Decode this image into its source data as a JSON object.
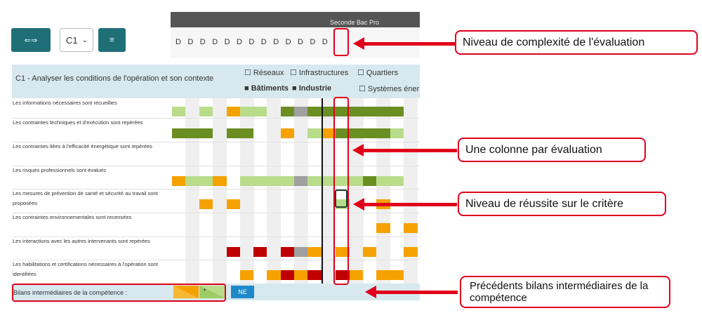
{
  "toolbar": {
    "toggle_button_label": "⇐⇒",
    "competence_select_value": "C1",
    "menu_button_label": "≡"
  },
  "header": {
    "title": "Seconde Bac Pro"
  },
  "evaluation_levels": [
    "D",
    "D",
    "D",
    "D",
    "D",
    "D",
    "D",
    "D",
    "D",
    "D",
    "D",
    "D",
    "D"
  ],
  "competence": {
    "title": "C1 - Analyser les conditions de l'opération et son contexte",
    "legend": [
      {
        "label": "☐ Réseaux",
        "style": "normal"
      },
      {
        "label": "☐ Infrastructures",
        "style": "normal"
      },
      {
        "label": "☐ Quartiers",
        "style": "normal"
      },
      {
        "label": "■ Bâtiments",
        "style": "bold"
      },
      {
        "label": "■ Industrie",
        "style": "bold"
      },
      {
        "label": "☐ Systèmes éner",
        "style": "normal"
      }
    ]
  },
  "criteria": [
    "Les informations nécessaires sont recueillies",
    "Les contraintes techniques et d'exécution sont repérées",
    "Les contraintes liées à l'efficacité énergétique sont repérées",
    "Les risques professionnels sont évalués",
    "Les mesures de prévention de santé et sécurité au travail sont proposées",
    "Les contraintes environnementales sont recensées",
    "Les interactions avec les autres intervenants sont repérées",
    "Les habilitations et certifications nécessaires à l'opération sont identifiées"
  ],
  "colors": {
    "light_green": "#b9dc8a",
    "dark_green": "#6b8e23",
    "orange": "#f5a200",
    "gray": "#a0a0a0",
    "dark_red": "#c00000",
    "accent_teal": "#1f6f78",
    "annotation_red": "#e0001b"
  },
  "footer": {
    "label": "Bilans intermédiaires de la compétence :",
    "plus_label": "+",
    "ne_label": "NE"
  },
  "annotations": {
    "complexity": "Niveau de complexité de l'évaluation",
    "column": "Une colonne par évaluation",
    "success": "Niveau de réussite sur le critère",
    "previous": "Précédents bilans intermédiaires de la compétence"
  }
}
